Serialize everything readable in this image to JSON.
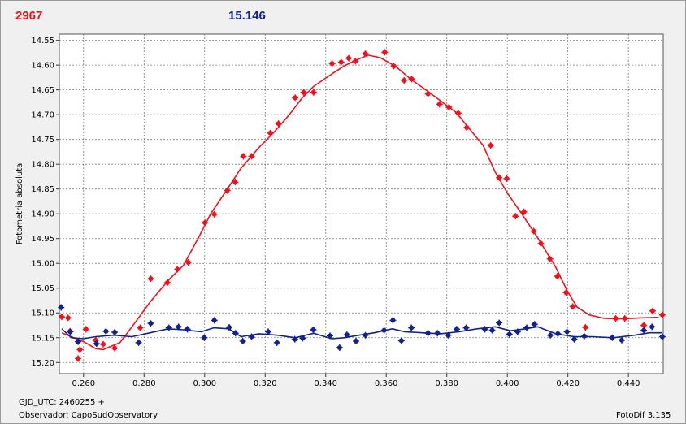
{
  "header": {
    "left_value": "2967",
    "right_value": "15.146"
  },
  "footer": {
    "gjd": "GJD_UTC: 2460255 +",
    "observer": "Observador: CapoSudObservatory",
    "version": "FotoDif 3.135"
  },
  "colors": {
    "series_red": "#e8141e",
    "series_blue": "#12238a",
    "grid": "#7a7a7a",
    "plot_bg": "#ffffff"
  },
  "chart_data": {
    "type": "scatter",
    "title": "",
    "xlabel": "",
    "ylabel": "Fotometria absoluta",
    "xlim": [
      0.252,
      0.4515
    ],
    "ylim": [
      15.2225,
      14.5375
    ],
    "y_inverted": true,
    "grid": true,
    "xticks": [
      "0.260",
      "0.280",
      "0.300",
      "0.320",
      "0.340",
      "0.360",
      "0.380",
      "0.400",
      "0.420",
      "0.440"
    ],
    "xtick_values": [
      0.26,
      0.28,
      0.3,
      0.32,
      0.34,
      0.36,
      0.38,
      0.4,
      0.42,
      0.44
    ],
    "yticks": [
      "14.55",
      "14.60",
      "14.65",
      "14.70",
      "14.75",
      "14.80",
      "14.85",
      "14.90",
      "14.95",
      "15.00",
      "15.05",
      "15.10",
      "15.15",
      "15.20"
    ],
    "ytick_values": [
      14.55,
      14.6,
      14.65,
      14.7,
      14.75,
      14.8,
      14.85,
      14.9,
      14.95,
      15.0,
      15.05,
      15.1,
      15.15,
      15.2
    ],
    "series": [
      {
        "color": "#e8141e",
        "points": [
          [
            0.2528,
            15.108
          ],
          [
            0.2549,
            15.11
          ],
          [
            0.2555,
            15.137
          ],
          [
            0.2582,
            15.192
          ],
          [
            0.2588,
            15.174
          ],
          [
            0.2608,
            15.133
          ],
          [
            0.264,
            15.155
          ],
          [
            0.2665,
            15.163
          ],
          [
            0.2703,
            15.171
          ],
          [
            0.2787,
            15.13
          ],
          [
            0.2822,
            15.031
          ],
          [
            0.2877,
            15.039
          ],
          [
            0.291,
            15.012
          ],
          [
            0.2946,
            14.998
          ],
          [
            0.3001,
            14.918
          ],
          [
            0.3032,
            14.901
          ],
          [
            0.3075,
            14.853
          ],
          [
            0.3101,
            14.836
          ],
          [
            0.3128,
            14.784
          ],
          [
            0.3155,
            14.784
          ],
          [
            0.3217,
            14.737
          ],
          [
            0.3244,
            14.718
          ],
          [
            0.3299,
            14.666
          ],
          [
            0.3327,
            14.655
          ],
          [
            0.336,
            14.655
          ],
          [
            0.3421,
            14.597
          ],
          [
            0.3451,
            14.594
          ],
          [
            0.3476,
            14.586
          ],
          [
            0.3498,
            14.592
          ],
          [
            0.3531,
            14.577
          ],
          [
            0.3595,
            14.574
          ],
          [
            0.3625,
            14.602
          ],
          [
            0.3659,
            14.631
          ],
          [
            0.3684,
            14.628
          ],
          [
            0.3738,
            14.658
          ],
          [
            0.3776,
            14.679
          ],
          [
            0.3807,
            14.685
          ],
          [
            0.3838,
            14.697
          ],
          [
            0.3866,
            14.726
          ],
          [
            0.3945,
            14.762
          ],
          [
            0.3973,
            14.827
          ],
          [
            0.3998,
            14.829
          ],
          [
            0.4027,
            14.905
          ],
          [
            0.4055,
            14.896
          ],
          [
            0.4087,
            14.935
          ],
          [
            0.4111,
            14.96
          ],
          [
            0.4141,
            14.991
          ],
          [
            0.4165,
            15.026
          ],
          [
            0.4194,
            15.059
          ],
          [
            0.4216,
            15.087
          ],
          [
            0.4258,
            15.129
          ],
          [
            0.4358,
            15.111
          ],
          [
            0.4388,
            15.111
          ],
          [
            0.4451,
            15.125
          ],
          [
            0.448,
            15.096
          ],
          [
            0.4512,
            15.104
          ]
        ],
        "fit": [
          [
            0.2528,
            15.14
          ],
          [
            0.26,
            15.158
          ],
          [
            0.264,
            15.172
          ],
          [
            0.2665,
            15.174
          ],
          [
            0.272,
            15.16
          ],
          [
            0.276,
            15.128
          ],
          [
            0.282,
            15.078
          ],
          [
            0.288,
            15.034
          ],
          [
            0.293,
            15.004
          ],
          [
            0.298,
            14.948
          ],
          [
            0.302,
            14.9
          ],
          [
            0.307,
            14.855
          ],
          [
            0.312,
            14.808
          ],
          [
            0.318,
            14.766
          ],
          [
            0.323,
            14.735
          ],
          [
            0.328,
            14.7
          ],
          [
            0.332,
            14.668
          ],
          [
            0.336,
            14.643
          ],
          [
            0.342,
            14.618
          ],
          [
            0.346,
            14.602
          ],
          [
            0.35,
            14.59
          ],
          [
            0.354,
            14.58
          ],
          [
            0.358,
            14.585
          ],
          [
            0.363,
            14.602
          ],
          [
            0.368,
            14.628
          ],
          [
            0.374,
            14.654
          ],
          [
            0.379,
            14.677
          ],
          [
            0.383,
            14.695
          ],
          [
            0.387,
            14.725
          ],
          [
            0.392,
            14.762
          ],
          [
            0.396,
            14.816
          ],
          [
            0.4,
            14.858
          ],
          [
            0.405,
            14.902
          ],
          [
            0.41,
            14.948
          ],
          [
            0.416,
            15.008
          ],
          [
            0.42,
            15.058
          ],
          [
            0.423,
            15.088
          ],
          [
            0.427,
            15.104
          ],
          [
            0.432,
            15.111
          ],
          [
            0.438,
            15.112
          ],
          [
            0.444,
            15.11
          ],
          [
            0.45,
            15.109
          ]
        ]
      },
      {
        "color": "#12238a",
        "points": [
          [
            0.2526,
            15.089
          ],
          [
            0.2556,
            15.138
          ],
          [
            0.2582,
            15.158
          ],
          [
            0.2643,
            15.162
          ],
          [
            0.2674,
            15.137
          ],
          [
            0.2703,
            15.139
          ],
          [
            0.2782,
            15.16
          ],
          [
            0.2822,
            15.121
          ],
          [
            0.2882,
            15.13
          ],
          [
            0.2914,
            15.128
          ],
          [
            0.2943,
            15.133
          ],
          [
            0.2999,
            15.15
          ],
          [
            0.3032,
            15.115
          ],
          [
            0.3081,
            15.129
          ],
          [
            0.3102,
            15.141
          ],
          [
            0.3126,
            15.157
          ],
          [
            0.3155,
            15.148
          ],
          [
            0.321,
            15.138
          ],
          [
            0.3239,
            15.16
          ],
          [
            0.3298,
            15.153
          ],
          [
            0.3324,
            15.151
          ],
          [
            0.3359,
            15.134
          ],
          [
            0.3414,
            15.146
          ],
          [
            0.3446,
            15.17
          ],
          [
            0.347,
            15.144
          ],
          [
            0.35,
            15.157
          ],
          [
            0.3531,
            15.145
          ],
          [
            0.3593,
            15.135
          ],
          [
            0.3622,
            15.115
          ],
          [
            0.365,
            15.156
          ],
          [
            0.3683,
            15.13
          ],
          [
            0.3738,
            15.141
          ],
          [
            0.3769,
            15.141
          ],
          [
            0.3805,
            15.145
          ],
          [
            0.3833,
            15.133
          ],
          [
            0.3864,
            15.13
          ],
          [
            0.3926,
            15.133
          ],
          [
            0.395,
            15.135
          ],
          [
            0.3973,
            15.12
          ],
          [
            0.4007,
            15.143
          ],
          [
            0.4034,
            15.138
          ],
          [
            0.4064,
            15.13
          ],
          [
            0.409,
            15.123
          ],
          [
            0.4142,
            15.145
          ],
          [
            0.4167,
            15.142
          ],
          [
            0.4197,
            15.138
          ],
          [
            0.4221,
            15.153
          ],
          [
            0.4254,
            15.147
          ],
          [
            0.4347,
            15.15
          ],
          [
            0.4378,
            15.155
          ],
          [
            0.4451,
            15.135
          ],
          [
            0.4478,
            15.128
          ],
          [
            0.4512,
            15.148
          ]
        ],
        "fit": [
          [
            0.2528,
            15.132
          ],
          [
            0.256,
            15.15
          ],
          [
            0.26,
            15.152
          ],
          [
            0.264,
            15.148
          ],
          [
            0.27,
            15.145
          ],
          [
            0.276,
            15.148
          ],
          [
            0.282,
            15.14
          ],
          [
            0.288,
            15.132
          ],
          [
            0.293,
            15.134
          ],
          [
            0.299,
            15.138
          ],
          [
            0.303,
            15.13
          ],
          [
            0.308,
            15.132
          ],
          [
            0.312,
            15.148
          ],
          [
            0.318,
            15.142
          ],
          [
            0.324,
            15.145
          ],
          [
            0.33,
            15.15
          ],
          [
            0.336,
            15.141
          ],
          [
            0.342,
            15.152
          ],
          [
            0.346,
            15.15
          ],
          [
            0.351,
            15.145
          ],
          [
            0.356,
            15.14
          ],
          [
            0.362,
            15.132
          ],
          [
            0.366,
            15.138
          ],
          [
            0.372,
            15.14
          ],
          [
            0.378,
            15.142
          ],
          [
            0.384,
            15.138
          ],
          [
            0.39,
            15.132
          ],
          [
            0.396,
            15.128
          ],
          [
            0.401,
            15.136
          ],
          [
            0.406,
            15.132
          ],
          [
            0.41,
            15.128
          ],
          [
            0.416,
            15.142
          ],
          [
            0.422,
            15.148
          ],
          [
            0.428,
            15.148
          ],
          [
            0.435,
            15.15
          ],
          [
            0.442,
            15.145
          ],
          [
            0.447,
            15.14
          ],
          [
            0.4512,
            15.14
          ]
        ]
      }
    ]
  }
}
